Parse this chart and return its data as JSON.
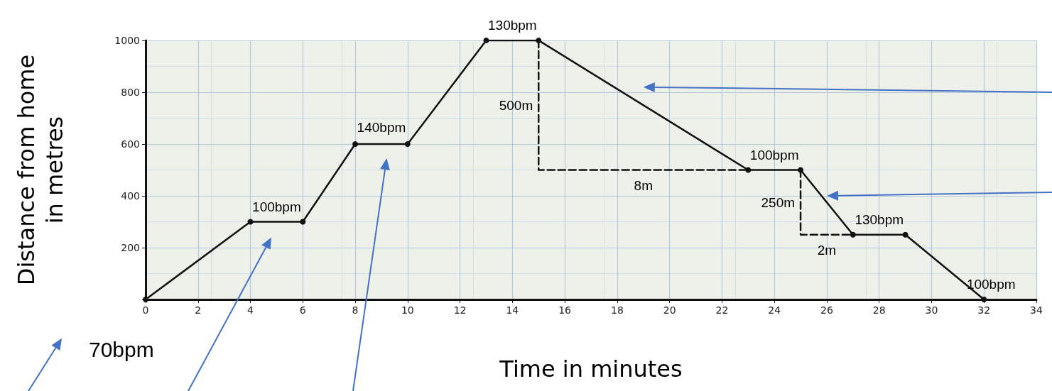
{
  "chart_data": {
    "type": "line",
    "xlabel": "Time in minutes",
    "ylabel": "Distance from home\nin metres",
    "xlim": [
      0,
      34
    ],
    "xticks": [
      0,
      2,
      4,
      6,
      8,
      10,
      12,
      14,
      16,
      18,
      20,
      22,
      24,
      26,
      28,
      30,
      32,
      34
    ],
    "ylim": [
      0,
      1000
    ],
    "yticks": [
      {
        "value": 0,
        "label": null
      },
      200,
      400,
      600,
      800,
      1000
    ],
    "grid": true,
    "marker": "circle",
    "series": [
      {
        "color": "#111111",
        "x": [
          0,
          4,
          6,
          8,
          10,
          13,
          15,
          23,
          25,
          27,
          29,
          32
        ],
        "values": [
          0,
          300,
          300,
          600,
          600,
          1000,
          1000,
          500,
          500,
          250,
          250,
          0
        ]
      },
      {
        "color": "#111111",
        "line_style": "dashed",
        "marker": "none",
        "x": [
          15,
          15,
          23
        ],
        "values": [
          1000,
          500,
          500
        ]
      },
      {
        "color": "#111111",
        "line_style": "dashed",
        "marker": "none",
        "x": [
          25,
          25,
          27
        ],
        "values": [
          500,
          250,
          250
        ]
      }
    ],
    "annotations": [
      {
        "text": "70bpm",
        "x": 0,
        "y": 0
      },
      {
        "text": "100bpm",
        "x": 5,
        "y": 300
      },
      {
        "text": "140bpm",
        "x": 9,
        "y": 600
      },
      {
        "text": "130bpm",
        "x": 14,
        "y": 1000
      },
      {
        "text": "100bpm",
        "x": 24,
        "y": 500
      },
      {
        "text": "130bpm",
        "x": 28,
        "y": 250
      },
      {
        "text": "100bpm",
        "x": 32,
        "y": 0
      },
      {
        "text": "500m",
        "x": 15,
        "y": 750
      },
      {
        "text": "8m",
        "x": 19,
        "y": 500
      },
      {
        "text": "250m",
        "x": 25,
        "y": 375
      },
      {
        "text": "2m",
        "x": 26,
        "y": 250
      }
    ]
  }
}
